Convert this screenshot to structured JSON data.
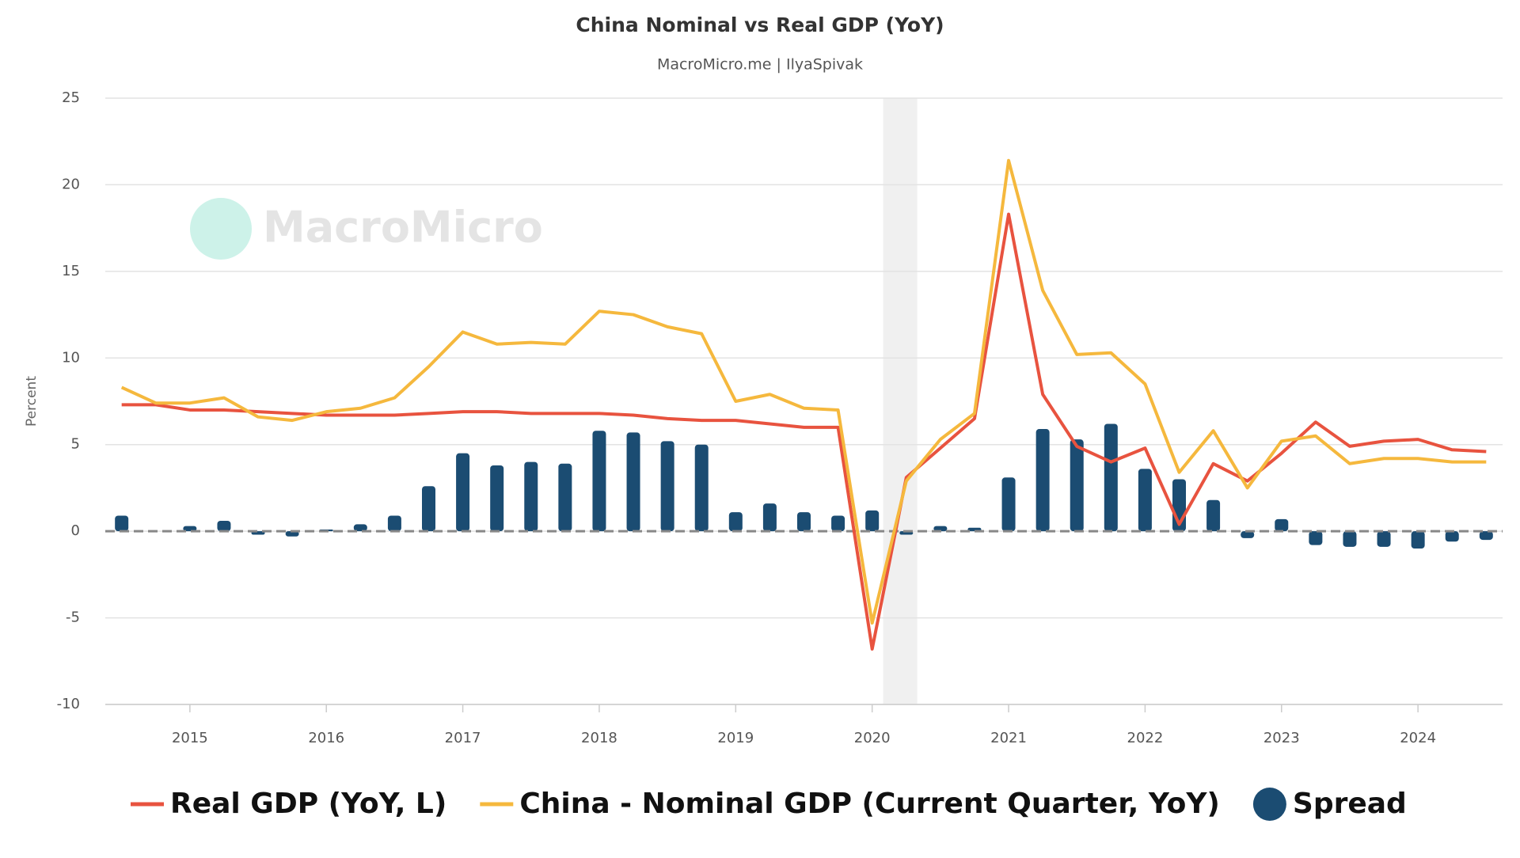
{
  "chart_data": {
    "type": "line+bar",
    "title": "China Nominal vs Real GDP (YoY)",
    "subtitle": "MacroMicro.me | IlyaSpivak",
    "watermark": "MacroMicro",
    "y_label": "Percent",
    "x": [
      2014.5,
      2014.75,
      2015,
      2015.25,
      2015.5,
      2015.75,
      2016,
      2016.25,
      2016.5,
      2016.75,
      2017,
      2017.25,
      2017.5,
      2017.75,
      2018,
      2018.25,
      2018.5,
      2018.75,
      2019,
      2019.25,
      2019.5,
      2019.75,
      2020,
      2020.25,
      2020.5,
      2020.75,
      2021,
      2021.25,
      2021.5,
      2021.75,
      2022,
      2022.25,
      2022.5,
      2022.75,
      2023,
      2023.25,
      2023.5,
      2023.75,
      2024,
      2024.25,
      2024.5
    ],
    "series": [
      {
        "name": "Real GDP (YoY, L)",
        "type": "line",
        "color": "#e8533f",
        "values": [
          7.3,
          7.3,
          7.0,
          7.0,
          6.9,
          6.8,
          6.7,
          6.7,
          6.7,
          6.8,
          6.9,
          6.9,
          6.8,
          6.8,
          6.8,
          6.7,
          6.5,
          6.4,
          6.4,
          6.2,
          6.0,
          6.0,
          -6.8,
          3.1,
          4.8,
          6.5,
          18.3,
          7.9,
          4.9,
          4.0,
          4.8,
          0.4,
          3.9,
          2.9,
          4.5,
          6.3,
          4.9,
          5.2,
          5.3,
          4.7,
          4.6
        ]
      },
      {
        "name": "China - Nominal GDP (Current Quarter, YoY)",
        "type": "line",
        "color": "#f5b83d",
        "values": [
          8.3,
          7.4,
          7.4,
          7.7,
          6.6,
          6.4,
          6.9,
          7.1,
          7.7,
          9.5,
          11.5,
          10.8,
          10.9,
          10.8,
          12.7,
          12.5,
          11.8,
          11.4,
          7.5,
          7.9,
          7.1,
          7.0,
          -5.3,
          2.9,
          5.3,
          6.8,
          21.4,
          13.9,
          10.2,
          10.3,
          8.5,
          3.4,
          5.8,
          2.5,
          5.2,
          5.5,
          3.9,
          4.2,
          4.2,
          4.0,
          4.0
        ]
      },
      {
        "name": "Spread",
        "type": "bar",
        "color": "#1b4c72",
        "values": [
          0.9,
          0,
          0.3,
          0.6,
          -0.2,
          -0.3,
          0.1,
          0.4,
          0.9,
          2.6,
          4.5,
          3.8,
          4.0,
          3.9,
          5.8,
          5.7,
          5.2,
          5.0,
          1.1,
          1.6,
          1.1,
          0.9,
          1.2,
          -0.2,
          0.3,
          0.2,
          3.1,
          5.9,
          5.3,
          6.2,
          3.6,
          3.0,
          1.8,
          -0.4,
          0.7,
          -0.8,
          -0.9,
          -0.9,
          -1.0,
          -0.6,
          -0.5
        ]
      }
    ],
    "xlim": [
      2014.38,
      2024.62
    ],
    "xticks": [
      2015,
      2016,
      2017,
      2018,
      2019,
      2020,
      2021,
      2022,
      2023,
      2024
    ],
    "ylim": [
      -10,
      25
    ],
    "yticks": [
      -10,
      -5,
      0,
      5,
      10,
      15,
      20,
      25
    ],
    "grid": true,
    "shade": [
      2020.08,
      2020.33
    ],
    "legend": "bottom"
  }
}
